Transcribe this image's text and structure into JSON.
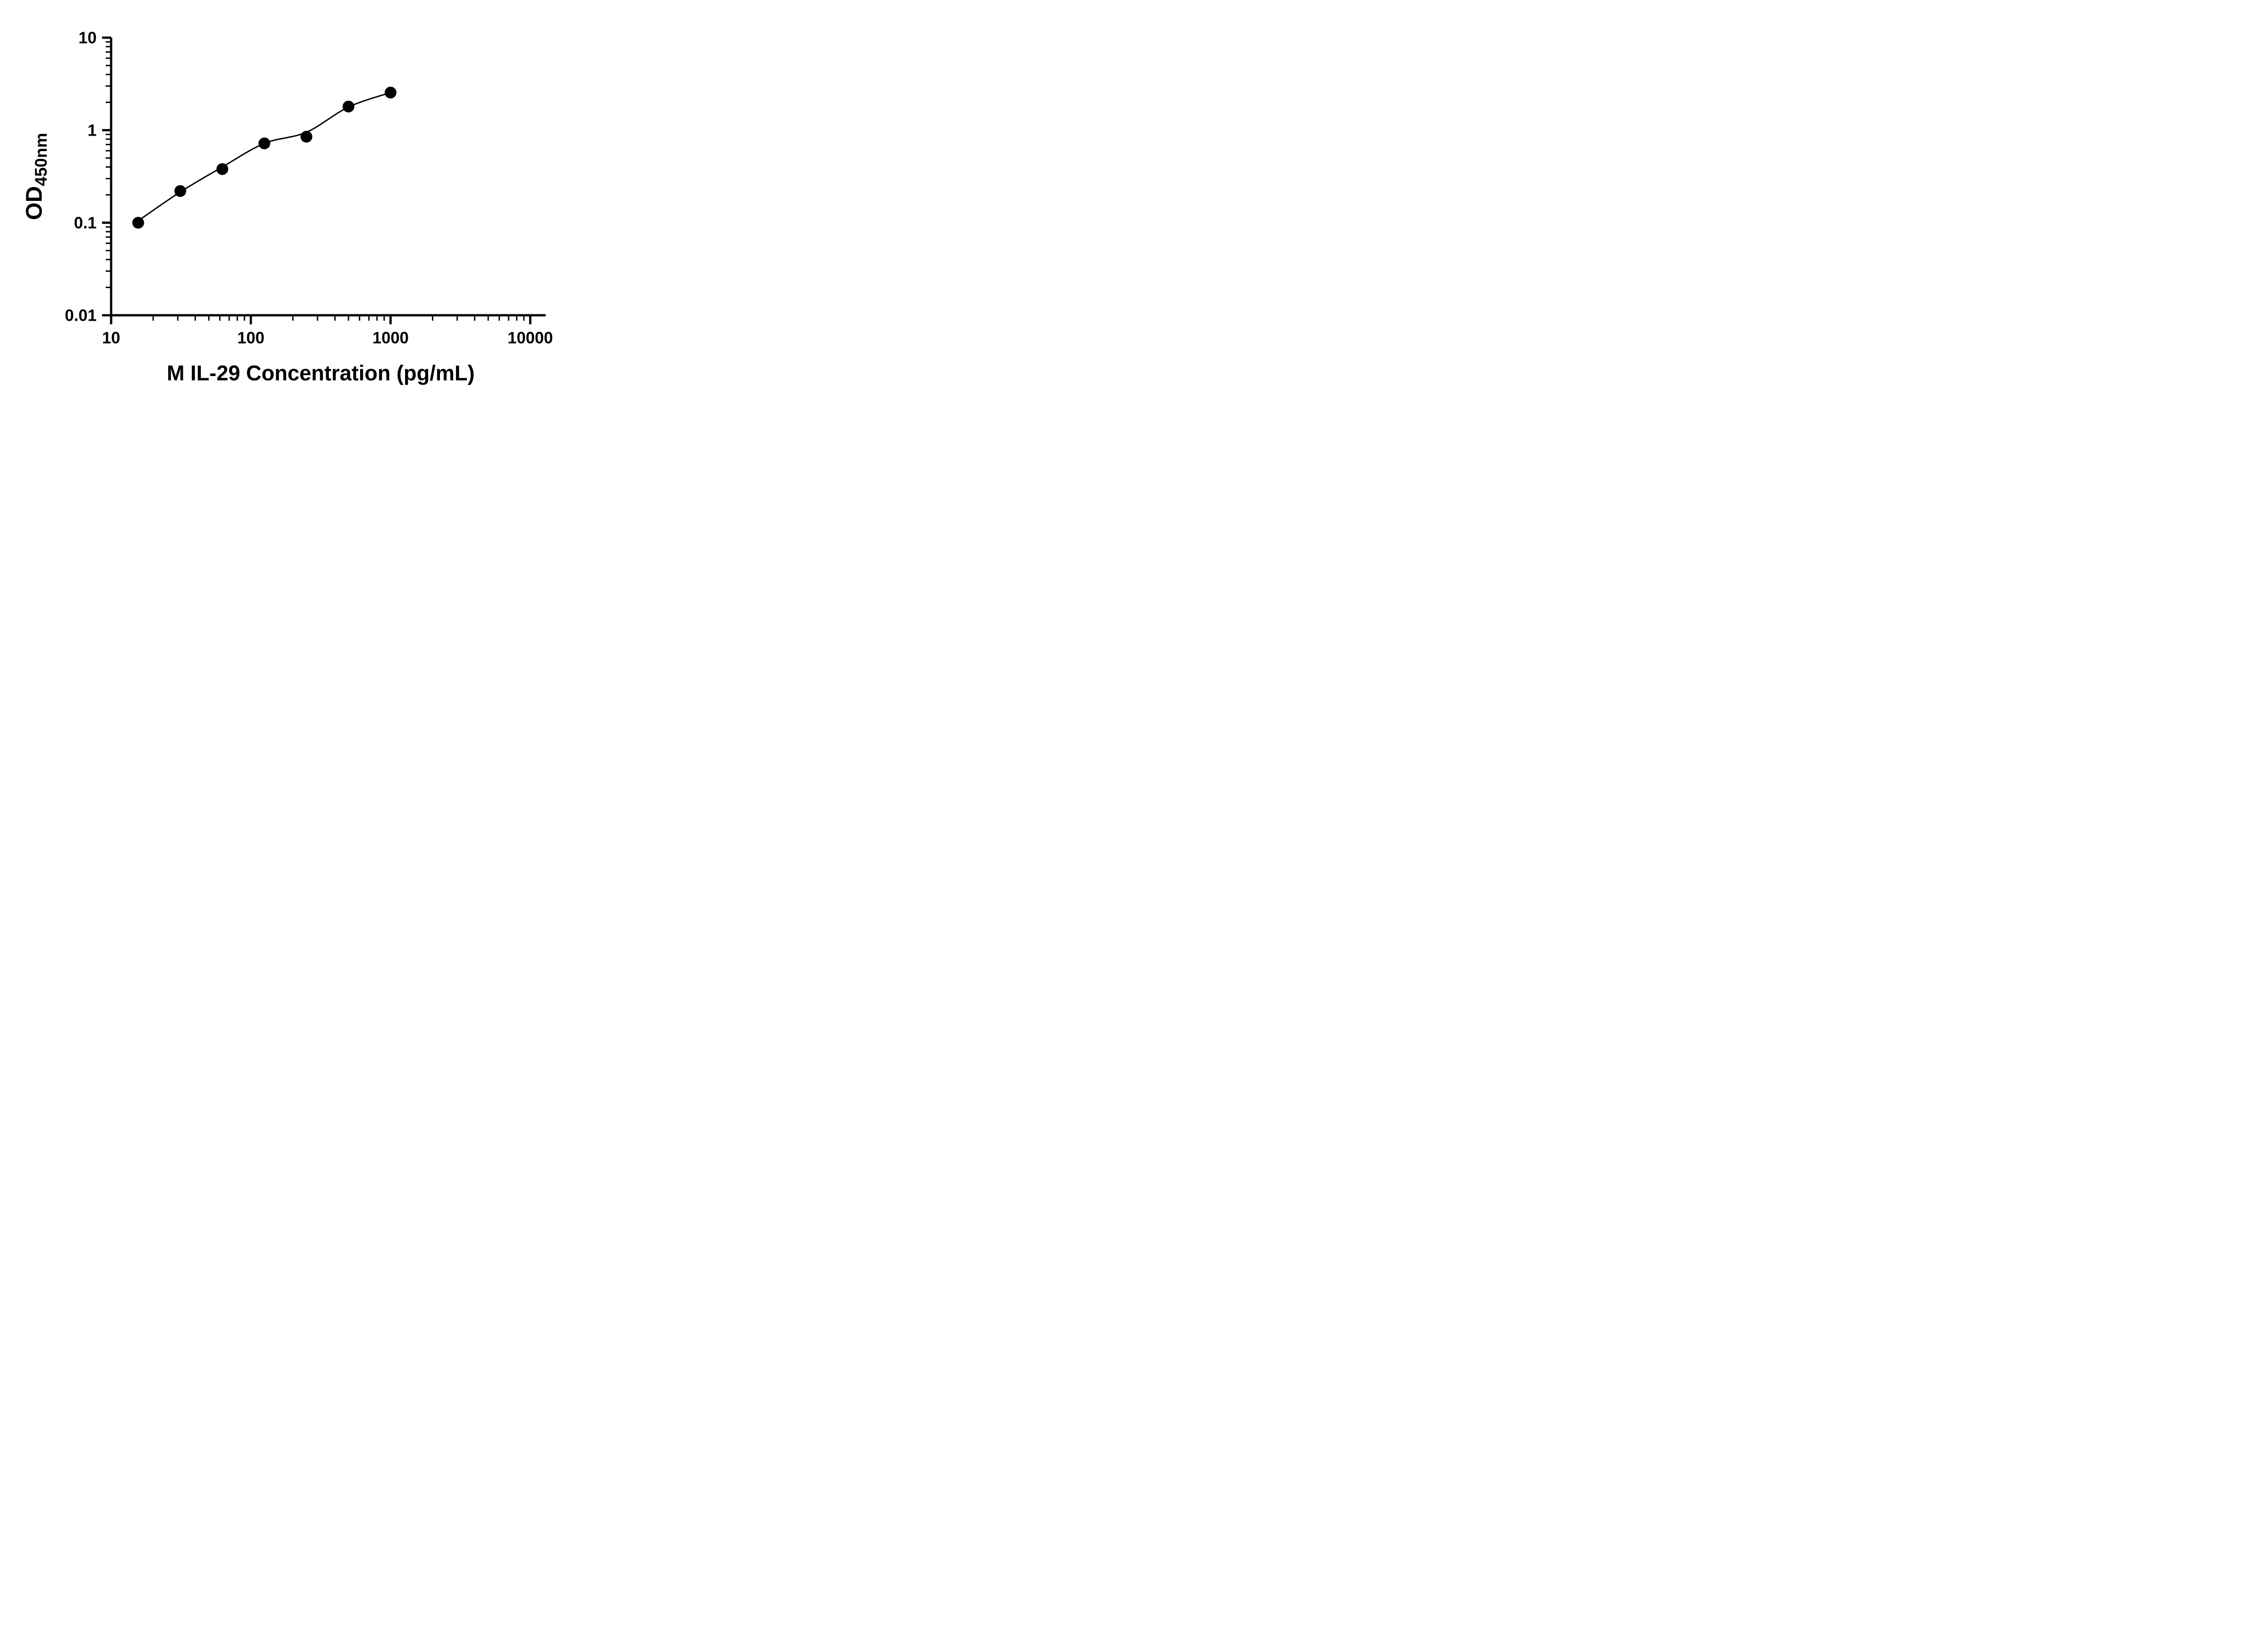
{
  "chart_data": {
    "type": "scatter",
    "title": "",
    "xlabel": "M IL-29 Concentration (pg/mL)",
    "ylabel": "OD",
    "ylabel_sub": "450nm",
    "x_scale": "log",
    "y_scale": "log",
    "xlim": [
      10,
      10000
    ],
    "ylim": [
      0.01,
      10
    ],
    "x_ticks": [
      10,
      100,
      1000,
      10000
    ],
    "x_tick_labels": [
      "10",
      "100",
      "1000",
      "10000"
    ],
    "y_ticks": [
      0.01,
      0.1,
      1,
      10
    ],
    "y_tick_labels": [
      "0.01",
      "0.1",
      "1",
      "10"
    ],
    "grid": "off",
    "legend": "none",
    "marker_color": "#000000",
    "line_color": "#000000",
    "background": "#ffffff",
    "points": [
      {
        "x": 15.625,
        "y": 0.1
      },
      {
        "x": 31.25,
        "y": 0.22
      },
      {
        "x": 62.5,
        "y": 0.38
      },
      {
        "x": 125,
        "y": 0.72
      },
      {
        "x": 250,
        "y": 0.85
      },
      {
        "x": 500,
        "y": 1.8
      },
      {
        "x": 1000,
        "y": 2.55
      }
    ],
    "fit_curve": [
      {
        "x": 15.625,
        "y": 0.105
      },
      {
        "x": 31.25,
        "y": 0.215
      },
      {
        "x": 62.5,
        "y": 0.4
      },
      {
        "x": 125,
        "y": 0.72
      },
      {
        "x": 250,
        "y": 0.95
      },
      {
        "x": 500,
        "y": 1.78
      },
      {
        "x": 1000,
        "y": 2.55
      }
    ]
  }
}
